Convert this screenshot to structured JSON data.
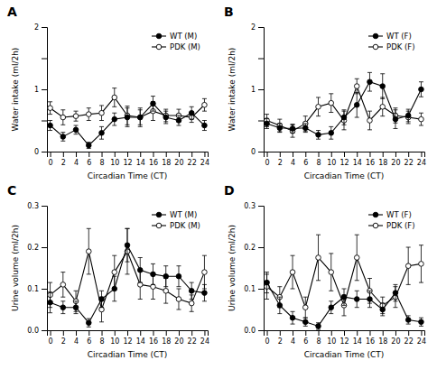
{
  "chart_data": [
    {
      "type": "line",
      "title": "A",
      "xlabel": "Circadian Time (CT)",
      "ylabel": "Water intake (ml/2h)",
      "x": [
        0,
        2,
        4,
        6,
        8,
        10,
        12,
        14,
        16,
        18,
        20,
        22,
        24
      ],
      "xlim": [
        -0.5,
        24.5
      ],
      "xticks": [
        0,
        2,
        4,
        6,
        8,
        10,
        12,
        14,
        16,
        18,
        20,
        22,
        24
      ],
      "ylim": [
        0,
        2.0
      ],
      "yticks": [
        0,
        {
          "value": 0.5,
          "label": null
        },
        1,
        {
          "value": 1.5,
          "label": null
        },
        2
      ],
      "grid": false,
      "legend": "upper right",
      "series": [
        {
          "name": "WT (M)",
          "color": "#000000",
          "marker": "circle",
          "line_style": "solid",
          "values": [
            0.42,
            0.24,
            0.35,
            0.1,
            0.3,
            0.52,
            0.55,
            0.55,
            0.77,
            0.55,
            0.5,
            0.62,
            0.42
          ],
          "errors": [
            0.08,
            0.07,
            0.07,
            0.05,
            0.1,
            0.1,
            0.15,
            0.12,
            0.12,
            0.1,
            0.08,
            0.1,
            0.08
          ]
        },
        {
          "name": "PDK (M)",
          "color": "#000000",
          "marker": "open-circle",
          "line_style": "solid",
          "values": [
            0.7,
            0.55,
            0.57,
            0.6,
            0.62,
            0.87,
            0.58,
            0.55,
            0.65,
            0.58,
            0.58,
            0.55,
            0.75
          ],
          "errors": [
            0.1,
            0.12,
            0.08,
            0.1,
            0.12,
            0.15,
            0.15,
            0.15,
            0.15,
            0.1,
            0.1,
            0.08,
            0.1
          ]
        }
      ]
    },
    {
      "type": "line",
      "title": "B",
      "xlabel": "Circadian Time (CT)",
      "ylabel": "Water intake (ml/2h)",
      "x": [
        0,
        2,
        4,
        6,
        8,
        10,
        12,
        14,
        16,
        18,
        20,
        22,
        24
      ],
      "xlim": [
        -0.5,
        24.5
      ],
      "xticks": [
        0,
        2,
        4,
        6,
        8,
        10,
        12,
        14,
        16,
        18,
        20,
        22,
        24
      ],
      "ylim": [
        0,
        2.0
      ],
      "yticks": [
        0,
        {
          "value": 0.5,
          "label": null
        },
        1,
        {
          "value": 1.5,
          "label": null
        },
        2
      ],
      "grid": false,
      "legend": "upper right",
      "series": [
        {
          "name": "WT (F)",
          "color": "#000000",
          "marker": "circle",
          "line_style": "solid",
          "values": [
            0.45,
            0.38,
            0.37,
            0.38,
            0.27,
            0.3,
            0.55,
            0.75,
            1.12,
            1.05,
            0.52,
            0.58,
            1.0
          ],
          "errors": [
            0.08,
            0.07,
            0.07,
            0.07,
            0.07,
            0.1,
            0.12,
            0.2,
            0.15,
            0.2,
            0.15,
            0.1,
            0.12
          ]
        },
        {
          "name": "PDK (F)",
          "color": "#000000",
          "marker": "open-circle",
          "line_style": "solid",
          "values": [
            0.5,
            0.42,
            0.33,
            0.45,
            0.72,
            0.78,
            0.5,
            1.05,
            0.5,
            0.72,
            0.58,
            0.55,
            0.52
          ],
          "errors": [
            0.1,
            0.1,
            0.1,
            0.12,
            0.15,
            0.15,
            0.15,
            0.12,
            0.15,
            0.15,
            0.12,
            0.1,
            0.1
          ]
        }
      ]
    },
    {
      "type": "line",
      "title": "C",
      "xlabel": "Circadian Time (CT)",
      "ylabel": "Urine volume (ml/2h)",
      "x": [
        0,
        2,
        4,
        6,
        8,
        10,
        12,
        14,
        16,
        18,
        20,
        22,
        24
      ],
      "xlim": [
        -0.5,
        24.5
      ],
      "xticks": [
        0,
        2,
        4,
        6,
        8,
        10,
        12,
        14,
        16,
        18,
        20,
        22,
        24
      ],
      "ylim": [
        0,
        0.3
      ],
      "yticks": [
        {
          "value": 0.0,
          "label": "0.0"
        },
        0.1,
        0.2,
        0.3
      ],
      "grid": false,
      "legend": "upper right",
      "series": [
        {
          "name": "WT (M)",
          "color": "#000000",
          "marker": "circle",
          "line_style": "solid",
          "values": [
            0.067,
            0.055,
            0.055,
            0.018,
            0.075,
            0.1,
            0.205,
            0.145,
            0.135,
            0.13,
            0.13,
            0.095,
            0.09
          ],
          "errors": [
            0.025,
            0.015,
            0.015,
            0.01,
            0.02,
            0.03,
            0.04,
            0.03,
            0.025,
            0.025,
            0.025,
            0.02,
            0.02
          ]
        },
        {
          "name": "PDK (M)",
          "color": "#000000",
          "marker": "open-circle",
          "line_style": "solid",
          "values": [
            0.085,
            0.11,
            0.07,
            0.19,
            0.05,
            0.14,
            0.19,
            0.11,
            0.105,
            0.095,
            0.075,
            0.065,
            0.14
          ],
          "errors": [
            0.03,
            0.03,
            0.025,
            0.055,
            0.03,
            0.04,
            0.055,
            0.035,
            0.03,
            0.03,
            0.025,
            0.02,
            0.04
          ]
        }
      ]
    },
    {
      "type": "line",
      "title": "D",
      "xlabel": "Circadian Time (CT)",
      "ylabel": "Urine volume (ml/2h)",
      "x": [
        0,
        2,
        4,
        6,
        8,
        10,
        12,
        14,
        16,
        18,
        20,
        22,
        24
      ],
      "xlim": [
        -0.5,
        24.5
      ],
      "xticks": [
        0,
        2,
        4,
        6,
        8,
        10,
        12,
        14,
        16,
        18,
        20,
        22,
        24
      ],
      "ylim": [
        0,
        0.3
      ],
      "yticks": [
        {
          "value": 0.0,
          "label": "0.0"
        },
        0.1,
        0.2,
        0.3
      ],
      "grid": false,
      "legend": "upper right",
      "series": [
        {
          "name": "WT (F)",
          "color": "#000000",
          "marker": "circle",
          "line_style": "solid",
          "values": [
            0.115,
            0.06,
            0.03,
            0.02,
            0.01,
            0.055,
            0.08,
            0.075,
            0.075,
            0.05,
            0.09,
            0.025,
            0.02
          ],
          "errors": [
            0.025,
            0.02,
            0.015,
            0.01,
            0.008,
            0.015,
            0.02,
            0.02,
            0.02,
            0.015,
            0.02,
            0.01,
            0.01
          ]
        },
        {
          "name": "PDK (F)",
          "color": "#000000",
          "marker": "open-circle",
          "line_style": "solid",
          "values": [
            0.105,
            0.08,
            0.14,
            0.055,
            0.175,
            0.14,
            0.06,
            0.175,
            0.095,
            0.06,
            0.08,
            0.155,
            0.16
          ],
          "errors": [
            0.03,
            0.025,
            0.04,
            0.025,
            0.055,
            0.045,
            0.025,
            0.055,
            0.03,
            0.02,
            0.025,
            0.045,
            0.045
          ]
        }
      ]
    }
  ]
}
